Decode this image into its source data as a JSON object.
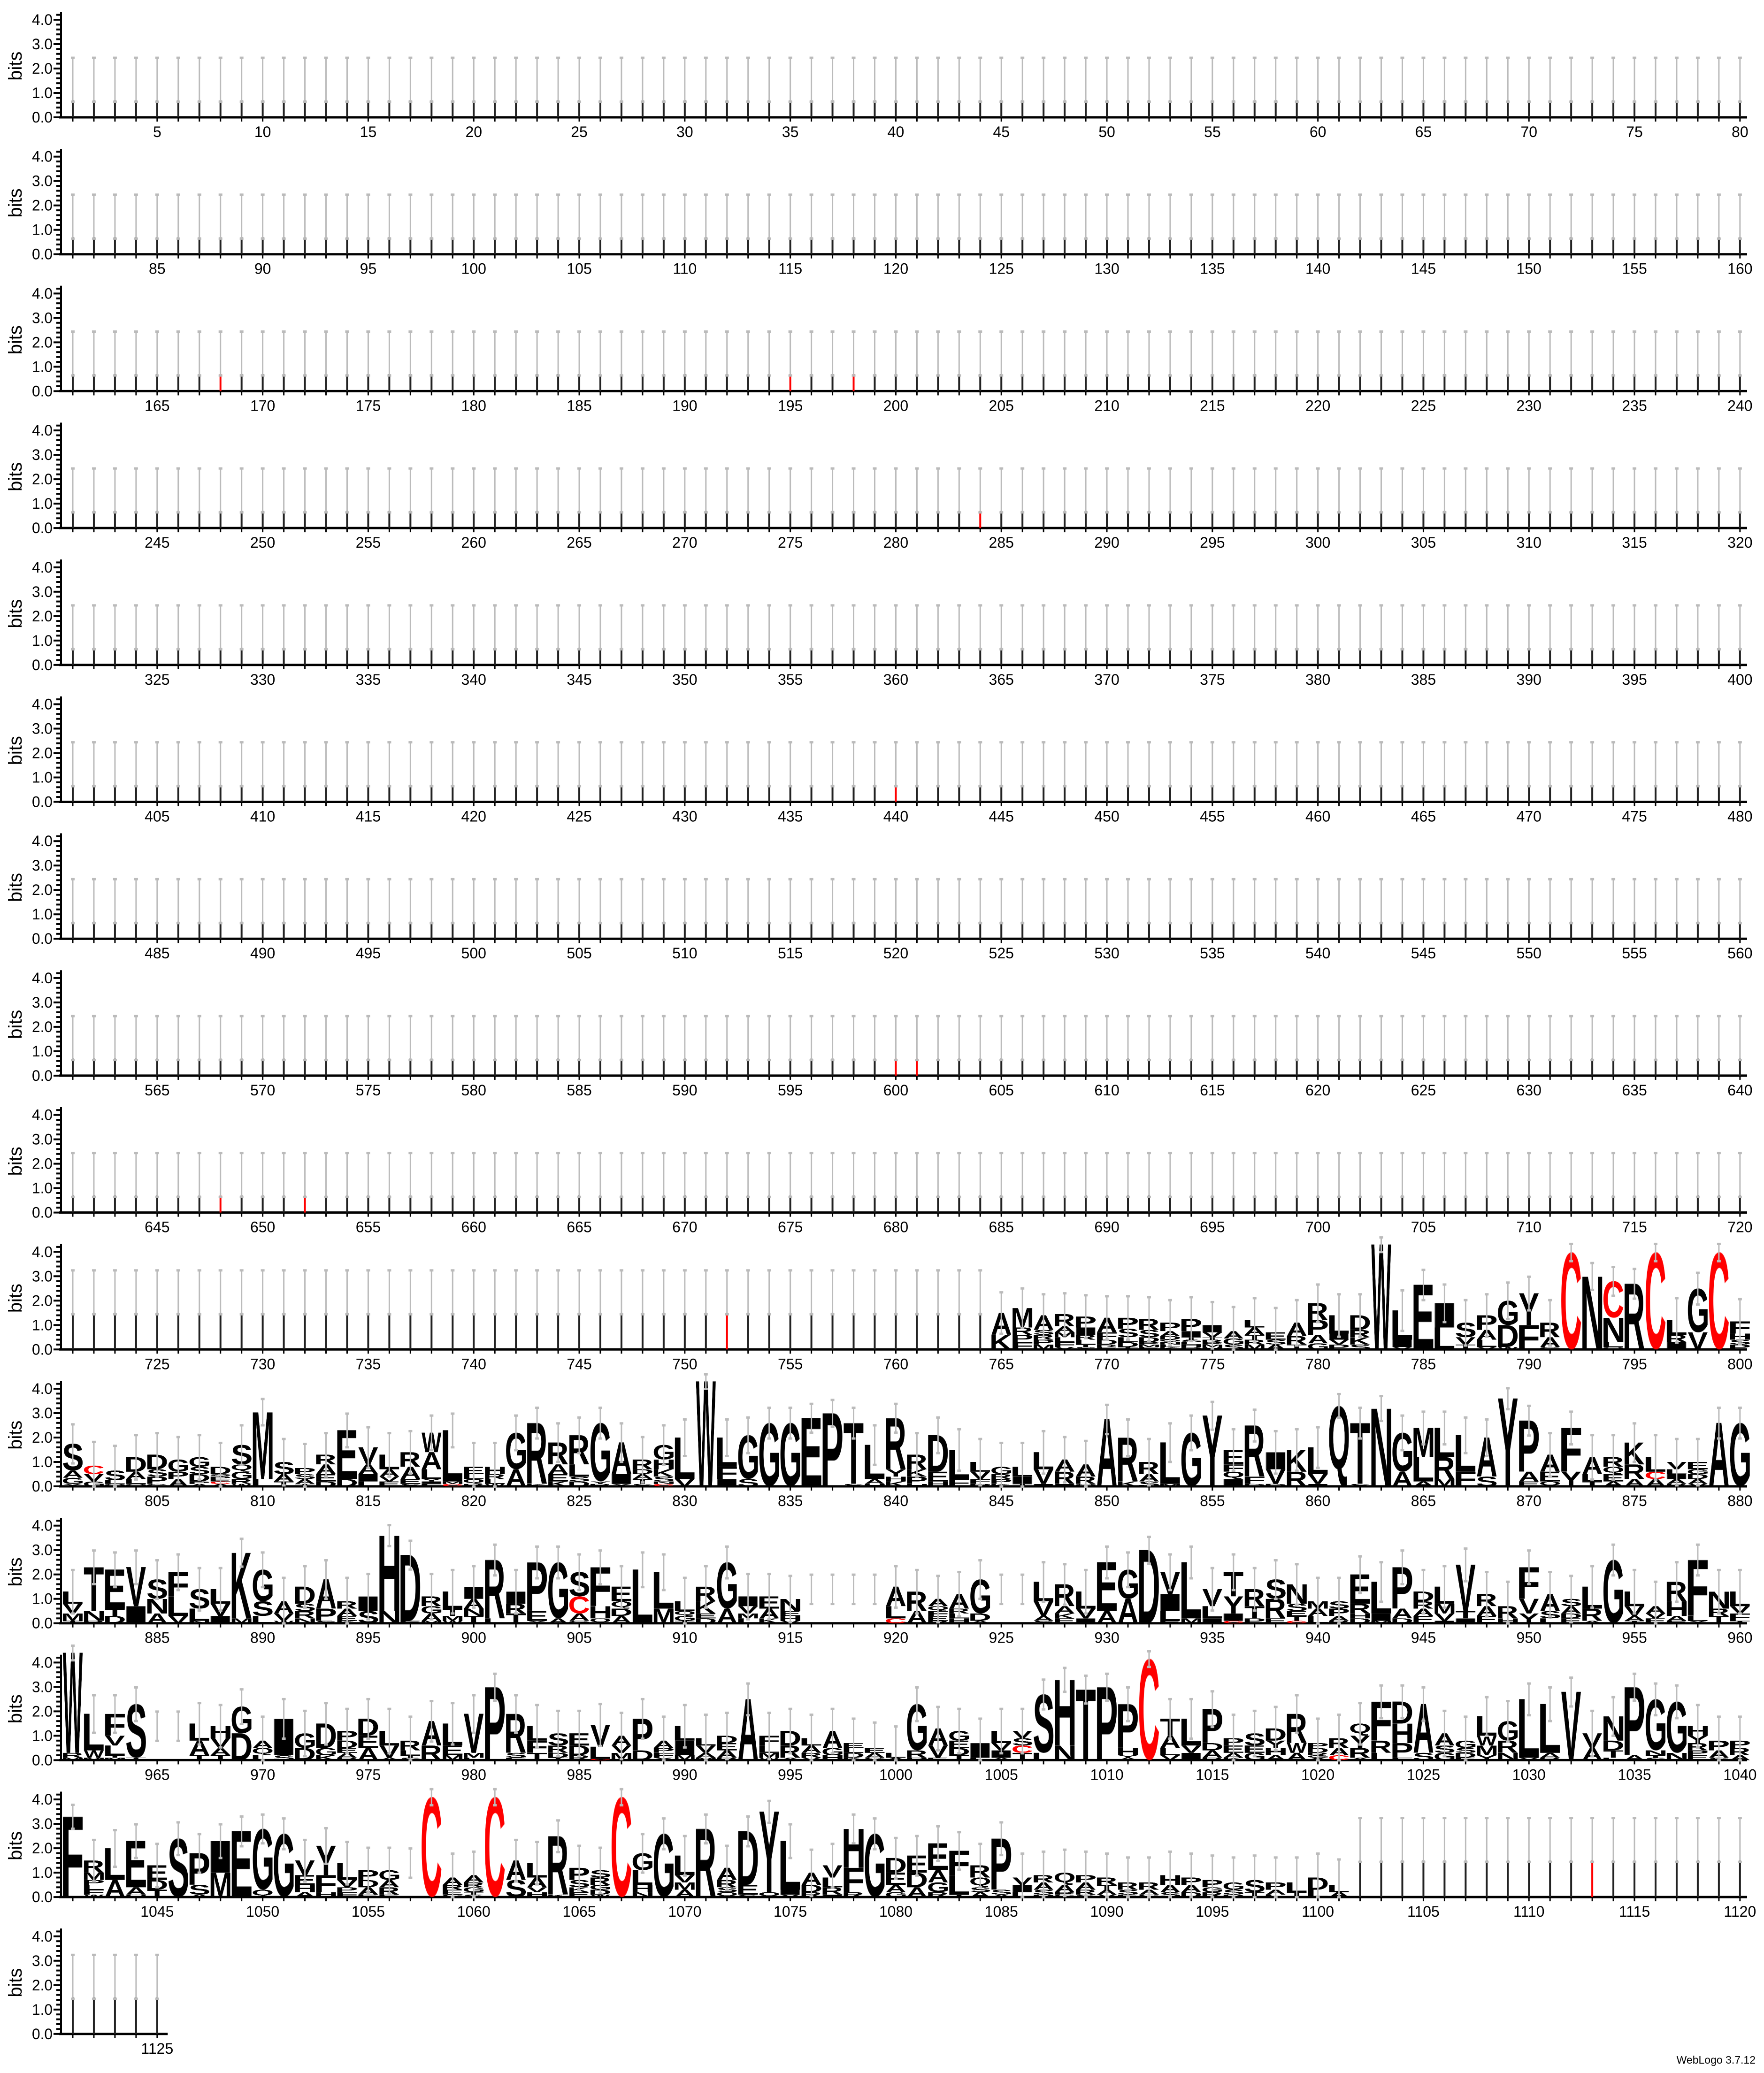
{
  "chart_data": {
    "type": "sequence-logo",
    "ylabel": "bits",
    "ylim": [
      0,
      4.32
    ],
    "y_ticks": [
      "0.0",
      "1.0",
      "2.0",
      "3.0",
      "4.0"
    ],
    "y_minor_tick_step": 0.2,
    "position_range": [
      1,
      1125
    ],
    "positions_per_row": 80,
    "x_tick_label_step": 5,
    "grid": false,
    "colors": {
      "C": "#FF0000",
      "default": "#000000",
      "error_bar": "#BBBBBB"
    },
    "background_positions": [
      {
        "range": [
          1,
          720
        ],
        "approx_bits": 0.7
      },
      {
        "range": [
          721,
          764
        ],
        "approx_bits": 1.5
      },
      {
        "range": [
          1102,
          1125
        ],
        "approx_bits": 1.5
      }
    ],
    "near_zero_positions": [
      916,
      917,
      918,
      919,
      925,
      926,
      965,
      966,
      1057
    ],
    "cysteine_slivers": [
      168,
      195,
      198,
      284,
      440,
      600,
      601,
      648,
      652,
      752,
      1113
    ],
    "stacks": {
      "765": "A0.9 K0.6",
      "766": "M0.8 F0.3 P0.3 R0.3",
      "767": "A0.6 M0.2 P0.2 R0.2 S0.2",
      "768": "R0.5 A0.25 F0.2 L0.2 M0.2 V0.1",
      "769": "P0.45 I0.3 L0.2 R0.2 S0.1 T0.1",
      "770": "A0.6 F0.3 D0.2 E0.1 R0.1",
      "771": "P0.45 S0.35 D0.2 L0.2 T0.1",
      "772": "R0.45 S0.3 D0.2 E0.1 M0.1 P0.1",
      "773": "P0.35 A0.2 D0.15 K0.1 L0.1 N0.1 Q0.1",
      "774": "P0.5 I0.25 D0.1 H0.1 L0.1 S0.1 T0.1",
      "775": "I0.3 V0.2 H0.1 M0.1 P0.1 R0.1 T0.1",
      "776": "A0.3 G0.25 S0.2",
      "777": "A0.3 L0.3 M0.2 R0.2 T0.2",
      "778": "E0.3 A0.2 S0.2",
      "779": "A0.55 R0.35 T0.2",
      "780": "R0.7 P0.6 A0.35 G0.25",
      "781": "L0.75 I0.25 P0.2 V0.2",
      "782": "D0.6 K0.3 R0.3 S0.2",
      "783": "W4.3",
      "784": "L1.2 I0.3 V0.1",
      "785": "E2.65",
      "786": "I1.0 L0.9",
      "787": "S0.6 V0.3 T0.2",
      "788": "P0.6 A0.4 L0.3 V0.1",
      "789": "G1.0 D0.9 W0.1",
      "790": "Y1.3 F1.0",
      "791": "R0.6 A0.4 G0.1",
      "792": "C3.98",
      "793": "N3.0",
      "794": "C1.5 N1.0 L0.2 Q0.1",
      "795": "R2.7",
      "796": "C3.98",
      "797": "L0.6 I0.3 R0.3",
      "798": "G1.8 V0.7",
      "799": "C3.98",
      "800": "F0.5 H0.25 P0.2 S0.2",
      "801": "S1.1 A0.3 G0.25 Y0.1",
      "802": "C0.35 V0.3 G0.2",
      "803": "S0.4 L0.15 Q0.1",
      "804": "D0.6 A0.3 L0.2 Q0.1",
      "805": "D0.6 P0.3 S0.3 G0.1",
      "806": "G0.5 A0.3 P0.3",
      "807": "G0.4 D0.3 S0.3 A0.1 P0.1",
      "808": "D0.3 A0.1 C0.1 E0.1 P0.1 Q0.1",
      "809": "S0.8 G0.3 Q0.3 R0.2 W0.1",
      "810": "M2.75 L0.3",
      "811": "S0.5 A0.3 T0.2",
      "812": "P0.25 A0.2 S0.2 T0.1",
      "813": "A0.4 R0.4 E0.3 D0.2",
      "814": "E2.0 D0.3",
      "815": "V0.7 A0.4 I0.3 L0.2",
      "816": "L0.6 A0.3 E0.2 V0.2",
      "817": "R0.6 A0.5 E0.2 S0.1",
      "818": "W0.8 A0.7 L0.4 F0.1 I0.1 Y0.1",
      "819": "L2.1 C0.1 M0.1",
      "820": "E0.3 Q0.2 L0.2 R0.1",
      "821": "H0.3 L0.2 R0.2 W0.1",
      "822": "G1.5 A0.7",
      "823": "R2.5 K0.1",
      "824": "R0.9 A0.4 E0.3 K0.2",
      "825": "R1.2 L0.5 D0.2 S0.2",
      "826": "G2.4 R0.1 Y0.1",
      "827": "A1.3 I0.4 Y0.1",
      "828": "R0.4 T0.2 A0.2 D0.2 S0.1",
      "829": "G0.6 H0.4 K0.3 S0.2 C0.1 N0.1",
      "830": "L1.7 V0.3",
      "831": "W4.3",
      "832": "L1.2 F0.5 I0.3",
      "833": "G1.8 S0.3",
      "834": "G2.6",
      "835": "G2.6",
      "836": "E2.8",
      "837": "P3.0",
      "838": "T2.5 S0.1",
      "839": "L1.4 A0.2 H0.1",
      "840": "R2.1 Y0.3 K0.2 H0.2",
      "841": "R0.6 P0.3 K0.3 H0.1",
      "842": "D1.5 E0.4 H0.2",
      "843": "L1.2 F0.3",
      "844": "L0.4 V0.3 F0.2 P0.1",
      "845": "G0.3 P0.2 R0.2 K0.1",
      "846": "L0.4 I0.3 T0.1",
      "847": "L0.7 V0.6 I0.1",
      "848": "R0.5 A0.5 I0.1",
      "849": "A0.5 R0.3 Q0.1",
      "850": "A2.75",
      "851": "R1.8 K0.2",
      "852": "R0.5 A0.3 S0.2",
      "853": "L1.7 M0.1",
      "854": "G2.2",
      "855": "Y2.9",
      "856": "E0.6 I0.3 Q0.3 F0.3",
      "857": "R2.1 F0.3 D0.1",
      "858": "I0.7 V0.6 D0.1",
      "859": "K0.9 R0.6",
      "860": "L1.1 V0.4 I0.1",
      "861": "Q3.3",
      "862": "T2.5 S0.1",
      "863": "N3.2",
      "864": "G1.6 A0.6",
      "865": "M1.2 L1.0 A0.2",
      "866": "L1.2 R0.9 M0.3",
      "867": "L1.5 F0.6",
      "868": "A1.6 S0.4",
      "869": "Y3.6",
      "870": "P2.1 A0.4 E0.2",
      "871": "A0.7 E0.4 Q0.2",
      "872": "F1.8 Y0.6",
      "873": "A0.7 L0.3 T0.2",
      "874": "R0.4 E0.3 Q0.3 A0.2",
      "875": "K0.9 R0.6 A0.3",
      "876": "L0.6 A0.3 C0.3",
      "877": "V0.3 A0.2 I0.2 L0.2 R0.1",
      "878": "E0.3 A0.2 D0.2 G0.2 V0.1",
      "879": "A2.6",
      "880": "G2.6",
      "881": "L0.5 V0.4 M0.3 T0.1",
      "882": "T1.8 N0.4 R0.1",
      "883": "E1.6 D0.3 T0.3",
      "884": "V1.6 I0.7",
      "885": "S0.8 N0.6 A0.4",
      "886": "F1.0 L0.8 V0.3",
      "887": "S0.8 L0.5 N0.1",
      "888": "L0.6 V0.5 I0.3",
      "889": "K2.7 M0.2",
      "890": "G1.3 S0.6 L0.3",
      "891": "A0.5 V0.3 W0.1",
      "892": "D0.7 R0.3 S0.3 N0.2",
      "893": "A1.2 P0.5 S0.1",
      "894": "A0.3 R0.3 E0.2 K0.1",
      "895": "I0.6 S0.5",
      "896": "H3.1 N0.5",
      "897": "D2.7 E0.1",
      "898": "R0.4 A0.3 G0.3 M0.1",
      "899": "L0.7 T0.3 M0.2 W0.1",
      "900": "I0.5 A0.4 T0.3 N0.3",
      "901": "R2.4 L0.2",
      "902": "I0.5 T0.4 R0.4",
      "903": "P2.0 E0.4 Y0.1",
      "904": "G2.3 A0.2",
      "905": "S1.0 C0.7 A0.3 G0.1",
      "906": "F1.6 H0.5 Q0.2",
      "907": "E0.6 A0.3 D0.3 Q0.3",
      "908": "L2.2",
      "909": "L1.5 M0.6",
      "910": "L0.4 G0.2 Q0.2 T0.1",
      "911": "R0.6 K0.5 D0.2 E0.2",
      "912": "G1.9 A0.6",
      "913": "I0.4 V0.3 L0.2 M0.2",
      "914": "E0.5 A0.4 K0.2",
      "915": "N0.5 H0.2 E0.2 V0.1",
      "920": "A0.8 L0.5 C0.2",
      "921": "R0.8 A0.5",
      "922": "A0.3 E0.2 F0.2 Q0.2 R0.1",
      "923": "A0.6 H0.2 L0.2 R0.2",
      "924": "G1.4 D0.3 A0.1",
      "927": "L0.8 V0.6 A0.2 S0.1",
      "928": "R0.9 A0.3 E0.2 K0.2",
      "929": "L0.7 V0.4 I0.2",
      "930": "E2.0 A0.5",
      "931": "G1.2 A1.0",
      "932": "D3.0",
      "933": "V0.9 I0.7 L0.4 E0.1",
      "934": "L2.3 M0.2",
      "935": "V0.7 L0.5 I0.2",
      "936": "T1.0 Y0.7 I0.3 C0.1",
      "937": "R0.7 T0.5 P0.2",
      "938": "R0.8 S0.8 E0.2",
      "939": "N0.8 S0.3 T0.2 E0.2 C0.1",
      "940": "L0.3 A0.3 M0.3",
      "941": "P0.3 S0.3 A0.2 R0.1",
      "942": "E1.2 R0.4 D0.2 H0.2",
      "943": "L1.3 I0.3 M0.1",
      "944": "P1.7 A0.4 D0.2",
      "945": "D0.4 E0.3 A0.3 R0.3",
      "946": "L0.7 M0.4 V0.3 I0.1",
      "947": "V1.9 T0.3 I0.2",
      "948": "R0.5 A0.4 E0.3",
      "949": "R0.5 H0.2",
      "950": "F1.3 V0.6 Y0.4",
      "951": "A0.7 S0.3 L0.2",
      "952": "A0.3 S0.3 E0.2 D0.2",
      "953": "L0.9 R0.5 A0.1",
      "954": "G2.6",
      "955": "L0.6 V0.4 A0.2 T0.1",
      "956": "A0.3 E0.2 V0.2",
      "957": "R0.8 H0.6 A0.2 E0.1",
      "958": "F2.3 L0.2 Y0.1",
      "959": "N0.7 T0.3 R0.3",
      "960": "L0.6 F0.3 V0.3 T0.1",
      "961": "W4.1 R0.2 M0.1",
      "962": "L1.5 W0.3 M0.1",
      "963": "F0.9 L0.4 V0.4 M0.1 T0.1",
      "964": "S2.2 T0.1",
      "967": "L0.7 A0.6 T0.2",
      "968": "H0.5 V0.4 A0.3 T0.2",
      "969": "D1.1 G1.1",
      "970": "Q0.3 A0.3 L0.2",
      "971": "I1.5 S0.2",
      "972": "G0.6 D0.5",
      "973": "D1.0 G0.3 K0.2",
      "974": "P0.4 D0.3 A0.2 E0.2 R0.1",
      "975": "D0.7 A0.5 E0.5",
      "976": "L0.6 V0.5 A0.1",
      "977": "R0.4 L0.2 S0.1 T0.1",
      "978": "A1.0 R0.6",
      "979": "L0.9 E0.4 M0.2",
      "980": "V1.6 M0.2 L0.1",
      "981": "P3.0",
      "982": "R1.6 S0.2 F0.1",
      "983": "L0.6 F0.5 T0.3",
      "984": "S0.5 R0.3 D0.2 T0.1",
      "985": "E0.5 D0.4 R0.2",
      "986": "V0.9 L0.5 C0.05",
      "987": "A0.4 M0.3 V0.3",
      "988": "P1.3 D0.4",
      "989": "A0.3 F0.2 P0.2 Y0.1",
      "990": "I0.6 L0.6 M0.2",
      "991": "V0.3 L0.3 A0.2 M0.1",
      "992": "A0.3 E0.3 D0.3 R0.1",
      "993": "A2.5",
      "994": "F0.4 L0.3 M0.2 W0.1",
      "995": "D0.6 R0.5 A0.1",
      "996": "A0.3 L0.3 R0.2 V0.1",
      "997": "A0.7 G0.3 H0.2",
      "998": "D0.2 L0.2 E0.2 K0.1",
      "999": "A0.2 E0.2 G0.1",
      "1000": "L0.2 A0.1",
      "1001": "G1.9 R0.3 P0.1",
      "1002": "A0.7 V0.5 E0.1",
      "1003": "G0.4 D0.3 E0.3 T0.2",
      "1004": "I0.6 L0.1",
      "1005": "L0.5 I0.3 V0.3 A0.1",
      "1006": "T0.3 C0.3 S0.3 V0.3",
      "1007": "S2.4 L0.3",
      "1008": "H2.7 N0.6",
      "1009": "T2.9",
      "1010": "P3.0",
      "1011": "P1.8 H0.3 A0.1 Y0.1",
      "1012": "C4.15",
      "1013": "T0.7 A0.5 L0.3 V0.2",
      "1014": "L1.1 I0.3 V0.3",
      "1015": "P1.4 A0.3 D0.3 R0.1",
      "1016": "E0.3 P0.3 A0.2 K0.1",
      "1017": "S0.5 G0.3 E0.3",
      "1018": "D0.5 H0.3 Y0.3 A0.2",
      "1019": "R1.2 W0.4 A0.3",
      "1020": "D0.2 P0.2 A0.1 G0.1 R0.1",
      "1021": "R0.4 A0.3 C0.2",
      "1022": "Y0.5 Q0.5 R0.4 A0.1",
      "1023": "F1.6 R0.5 L0.3",
      "1024": "D0.9 H0.8 P0.6 F0.1",
      "1025": "A2.0 S0.3",
      "1026": "A0.5 G0.3 S0.3",
      "1027": "G0.3 D0.2 S0.2 E0.1",
      "1028": "L0.8 M0.4 W0.4 Y0.2",
      "1029": "G0.8 R0.5 N0.3",
      "1030": "L2.4 V0.1",
      "1031": "L2.0 A0.2 R0.1",
      "1032": "V2.8",
      "1033": "V0.6 A0.5",
      "1034": "N1.0 D0.4 T0.3 L0.1",
      "1035": "P2.8 A0.2",
      "1036": "G2.1 N0.2 S0.1 T0.1",
      "1037": "G2.1 N0.3",
      "1038": "H0.4 R0.3 Y0.3 E0.2 P0.2",
      "1039": "P0.4 A0.3 S0.1",
      "1040": "R0.3 P0.3 A0.2",
      "1041": "F3.3",
      "1042": "R0.5 M0.3 F0.2 L0.2 P0.2 W0.1",
      "1043": "L1.3 A0.7",
      "1044": "E1.9 A0.3 Q0.1",
      "1045": "E0.6 D0.4 T0.3",
      "1046": "S2.4",
      "1047": "P1.3 S0.4 A0.1",
      "1048": "I1.3 M1.0",
      "1049": "E2.7",
      "1050": "G2.5 Q0.3",
      "1051": "G2.6",
      "1052": "V0.6 E0.4 H0.3 A0.2",
      "1053": "Y1.2 F0.7 H0.2",
      "1054": "L0.7 V0.3 F0.2 P0.2",
      "1055": "P0.4 A0.3 D0.3 E0.1",
      "1056": "G0.4 R0.3 A0.3 E0.1",
      "1058": "C4.1",
      "1059": "A0.3 E0.2 R0.2 G0.1",
      "1060": "A0.3 G0.2 R0.2 S0.1 T0.1",
      "1061": "C4.1",
      "1062": "A0.8 S0.7",
      "1063": "L0.6 A0.4 H0.2 V0.2",
      "1064": "R2.4 K0.1",
      "1065": "P0.5 S0.3 E0.2 K0.2",
      "1066": "R0.3 S0.3 D0.2 G0.2 W0.1",
      "1067": "C4.1",
      "1068": "G0.7 L0.6 H0.3 N0.2",
      "1069": "G2.6",
      "1070": "L0.8 A0.3 M0.3 V0.3",
      "1071": "R2.8",
      "1072": "A0.5 R0.3 Q0.2 S0.2",
      "1073": "D2.2 E0.4 S0.1",
      "1074": "Y3.3 Q0.2",
      "1075": "L2.0 I0.2 V0.1",
      "1076": "A0.5 D0.3 R0.2",
      "1077": "V0.5 L0.4 R0.3 I0.1",
      "1078": "H1.6 F1.0 R0.2",
      "1079": "G2.6",
      "1080": "D0.6 E0.5 A0.3 G0.2",
      "1081": "E0.7 D0.6 A0.4",
      "1082": "E1.1 A0.5 G0.4 R0.2",
      "1083": "F1.0 L0.8 T0.1",
      "1084": "R0.5 Q0.4 A0.2 S0.2",
      "1085": "P2.1 S0.2 A0.1",
      "1086": "I0.3 V0.3 L0.2",
      "1087": "A0.3 R0.3 S0.2 P0.1",
      "1088": "Q0.5 A0.3 G0.1 P0.1",
      "1089": "A0.3 P0.3 R0.2 S0.1",
      "1090": "R0.3 A0.2 T0.2 V0.1",
      "1091": "R0.3 S0.2 E0.1",
      "1092": "R0.3 A0.2 G0.1",
      "1093": "H0.4 A0.3 S0.2",
      "1094": "A0.3 P0.3 D0.2",
      "1095": "P0.3 R0.2 G0.2",
      "1096": "G0.3 S0.2 D0.1",
      "1097": "S0.5 T0.2",
      "1098": "P0.3 A0.2 L0.1",
      "1099": "L0.4 T0.2",
      "1100": "D0.5 L0.3",
      "1101": "L0.3 A0.2"
    }
  },
  "footer": {
    "version_label": "WebLogo 3.7.12"
  }
}
